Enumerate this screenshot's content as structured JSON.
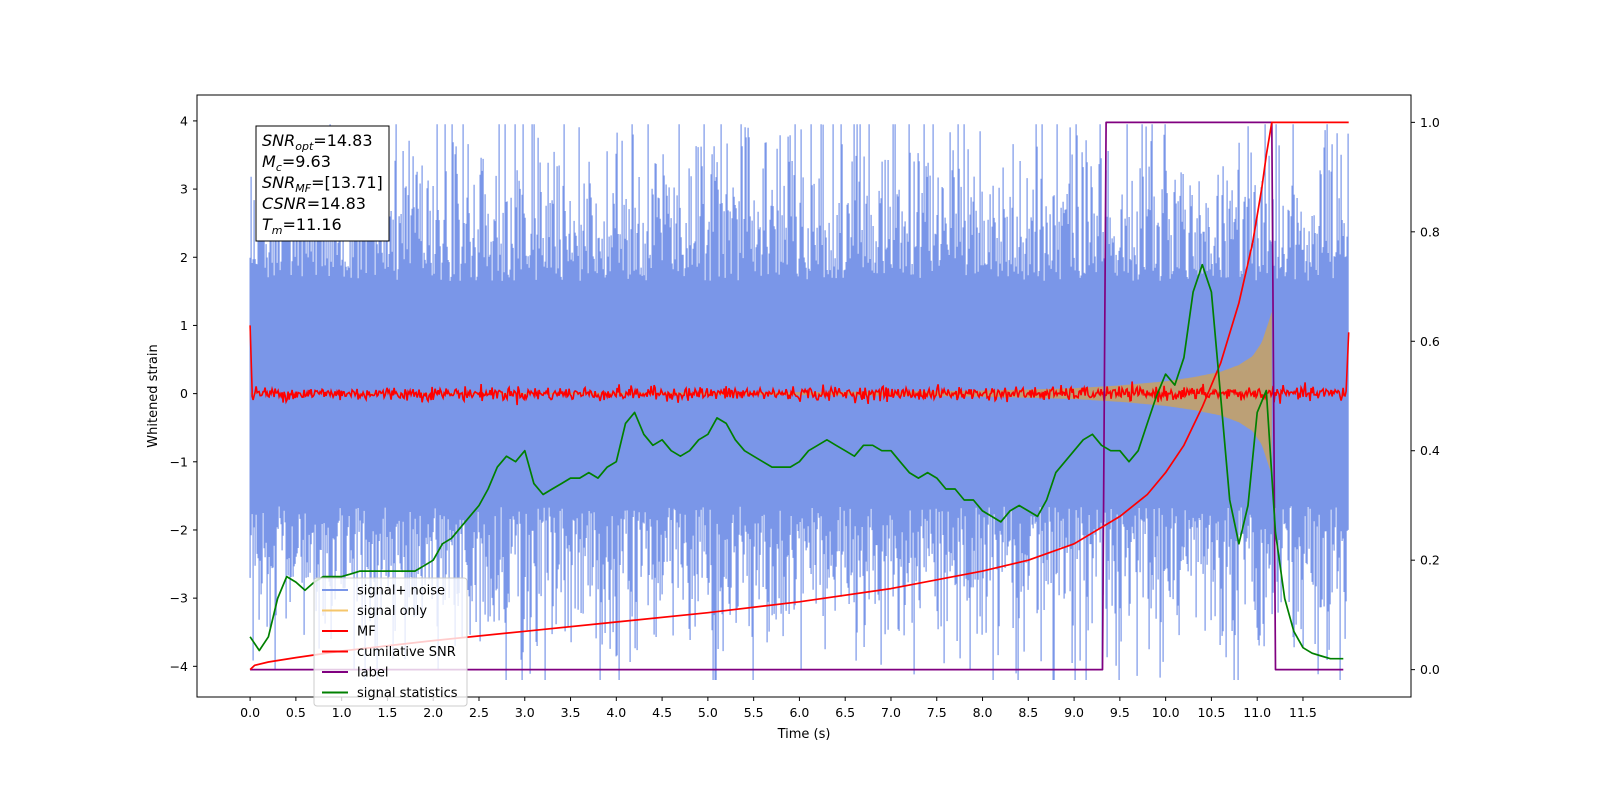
{
  "chart_data": {
    "type": "line",
    "title": "",
    "xlabel": "Time (s)",
    "ylabel": "Whitened strain",
    "y2label": "",
    "xlim": [
      -0.58,
      12.68
    ],
    "ylim": [
      -4.45,
      4.38
    ],
    "y2lim": [
      -0.05,
      1.05
    ],
    "x_ticks": [
      0.0,
      0.5,
      1.0,
      1.5,
      2.0,
      2.5,
      3.0,
      3.5,
      4.0,
      4.5,
      5.0,
      5.5,
      6.0,
      6.5,
      7.0,
      7.5,
      8.0,
      8.5,
      9.0,
      9.5,
      10.0,
      10.5,
      11.0,
      11.5
    ],
    "x_tick_labels": [
      "0.0",
      "0.5",
      "1.0",
      "1.5",
      "2.0",
      "2.5",
      "3.0",
      "3.5",
      "4.0",
      "4.5",
      "5.0",
      "5.5",
      "6.0",
      "6.5",
      "7.0",
      "7.5",
      "8.0",
      "8.5",
      "9.0",
      "9.5",
      "10.0",
      "10.5",
      "11.0",
      "11.5"
    ],
    "y_ticks": [
      4,
      3,
      2,
      1,
      0,
      -1,
      -2,
      -3,
      -4
    ],
    "y_tick_labels": [
      "4",
      "3",
      "2",
      "1",
      "0",
      "−1",
      "−2",
      "−3",
      "−4"
    ],
    "y2_ticks": [
      1.0,
      0.8,
      0.6,
      0.4,
      0.2,
      0.0
    ],
    "y2_tick_labels": [
      "1.0",
      "0.8",
      "0.6",
      "0.4",
      "0.2",
      "0.0"
    ],
    "grid": false,
    "legend_position": "lower-left",
    "annotation": {
      "lines": [
        {
          "base": "SNR",
          "sub": "opt",
          "value": "=14.83"
        },
        {
          "base": "M",
          "sub": "c",
          "value": "=9.63"
        },
        {
          "base": "SNR",
          "sub": "MF",
          "value": "=[13.71]"
        },
        {
          "base": "CSNR",
          "sub": "",
          "value": "=14.83"
        },
        {
          "base": "T",
          "sub": "m",
          "value": "=11.16"
        }
      ]
    },
    "series": [
      {
        "name": "signal+ noise",
        "color": "#7a96e8",
        "axis": "left",
        "style": "noise",
        "x_range": [
          0.0,
          12.0
        ],
        "envelope_pos": 2.2,
        "envelope_neg": -2.2,
        "peak_max": 3.95,
        "peak_min": -4.2
      },
      {
        "name": "signal only",
        "color": "#f5c66b",
        "axis": "left",
        "style": "chirp",
        "x": [
          0.0,
          2.0,
          4.0,
          6.0,
          7.0,
          8.0,
          8.5,
          9.0,
          9.5,
          10.0,
          10.3,
          10.6,
          10.8,
          10.95,
          11.05,
          11.1,
          11.16
        ],
        "amplitude": [
          0.005,
          0.008,
          0.013,
          0.022,
          0.03,
          0.045,
          0.06,
          0.08,
          0.12,
          0.18,
          0.24,
          0.32,
          0.42,
          0.55,
          0.75,
          0.95,
          1.2
        ]
      },
      {
        "name": "MF",
        "color": "#ff0000",
        "axis": "left",
        "style": "mf",
        "x_range": [
          0.0,
          12.0
        ],
        "start_value": 1.0,
        "end_value": 0.9,
        "band": 0.1
      },
      {
        "name": "cumilative SNR",
        "color": "#ff0000",
        "axis": "right",
        "x": [
          0.0,
          0.05,
          0.2,
          0.5,
          1.0,
          2.0,
          3.0,
          4.0,
          5.0,
          6.0,
          7.0,
          8.0,
          8.5,
          9.0,
          9.5,
          9.8,
          10.0,
          10.2,
          10.4,
          10.6,
          10.8,
          10.95,
          11.05,
          11.1,
          11.16,
          11.17,
          12.0
        ],
        "y": [
          0.0,
          0.008,
          0.014,
          0.022,
          0.034,
          0.053,
          0.07,
          0.087,
          0.104,
          0.124,
          0.148,
          0.18,
          0.2,
          0.23,
          0.28,
          0.32,
          0.36,
          0.41,
          0.48,
          0.56,
          0.67,
          0.78,
          0.88,
          0.94,
          1.0,
          1.0,
          1.0
        ]
      },
      {
        "name": "label",
        "color": "#800080",
        "axis": "right",
        "x": [
          0.0,
          9.31,
          9.35,
          11.16,
          11.2,
          11.94
        ],
        "y": [
          0.0,
          0.0,
          1.0,
          1.0,
          0.0,
          0.0
        ]
      },
      {
        "name": "signal statistics",
        "color": "#008000",
        "axis": "right",
        "x": [
          0.0,
          0.1,
          0.2,
          0.3,
          0.4,
          0.5,
          0.6,
          0.7,
          0.8,
          0.9,
          1.0,
          1.1,
          1.2,
          1.3,
          1.4,
          1.5,
          1.6,
          1.7,
          1.8,
          1.9,
          2.0,
          2.1,
          2.2,
          2.3,
          2.4,
          2.5,
          2.6,
          2.7,
          2.8,
          2.9,
          3.0,
          3.1,
          3.2,
          3.3,
          3.4,
          3.5,
          3.6,
          3.7,
          3.8,
          3.9,
          4.0,
          4.1,
          4.2,
          4.3,
          4.4,
          4.5,
          4.6,
          4.7,
          4.8,
          4.9,
          5.0,
          5.1,
          5.2,
          5.3,
          5.4,
          5.5,
          5.6,
          5.7,
          5.8,
          5.9,
          6.0,
          6.1,
          6.2,
          6.3,
          6.4,
          6.5,
          6.6,
          6.7,
          6.8,
          6.9,
          7.0,
          7.1,
          7.2,
          7.3,
          7.4,
          7.5,
          7.6,
          7.7,
          7.8,
          7.9,
          8.0,
          8.1,
          8.2,
          8.3,
          8.4,
          8.5,
          8.6,
          8.7,
          8.8,
          8.9,
          9.0,
          9.1,
          9.2,
          9.3,
          9.4,
          9.5,
          9.6,
          9.7,
          9.8,
          9.9,
          10.0,
          10.1,
          10.2,
          10.3,
          10.4,
          10.5,
          10.6,
          10.7,
          10.8,
          10.9,
          11.0,
          11.1,
          11.2,
          11.3,
          11.4,
          11.5,
          11.6,
          11.7,
          11.8,
          11.94
        ],
        "y": [
          0.06,
          0.035,
          0.06,
          0.13,
          0.17,
          0.16,
          0.145,
          0.16,
          0.17,
          0.17,
          0.17,
          0.175,
          0.18,
          0.18,
          0.18,
          0.18,
          0.18,
          0.18,
          0.18,
          0.19,
          0.2,
          0.23,
          0.24,
          0.26,
          0.28,
          0.3,
          0.33,
          0.37,
          0.39,
          0.38,
          0.4,
          0.34,
          0.32,
          0.33,
          0.34,
          0.35,
          0.35,
          0.36,
          0.35,
          0.37,
          0.38,
          0.45,
          0.47,
          0.43,
          0.41,
          0.42,
          0.4,
          0.39,
          0.4,
          0.42,
          0.43,
          0.46,
          0.45,
          0.42,
          0.4,
          0.39,
          0.38,
          0.37,
          0.37,
          0.37,
          0.38,
          0.4,
          0.41,
          0.42,
          0.41,
          0.4,
          0.39,
          0.41,
          0.41,
          0.4,
          0.4,
          0.38,
          0.36,
          0.35,
          0.36,
          0.35,
          0.33,
          0.33,
          0.31,
          0.31,
          0.29,
          0.28,
          0.27,
          0.29,
          0.3,
          0.29,
          0.28,
          0.31,
          0.36,
          0.38,
          0.4,
          0.42,
          0.43,
          0.41,
          0.4,
          0.4,
          0.38,
          0.4,
          0.45,
          0.5,
          0.54,
          0.52,
          0.57,
          0.69,
          0.74,
          0.69,
          0.5,
          0.31,
          0.23,
          0.3,
          0.47,
          0.51,
          0.25,
          0.13,
          0.07,
          0.04,
          0.03,
          0.025,
          0.02,
          0.02
        ]
      }
    ]
  }
}
